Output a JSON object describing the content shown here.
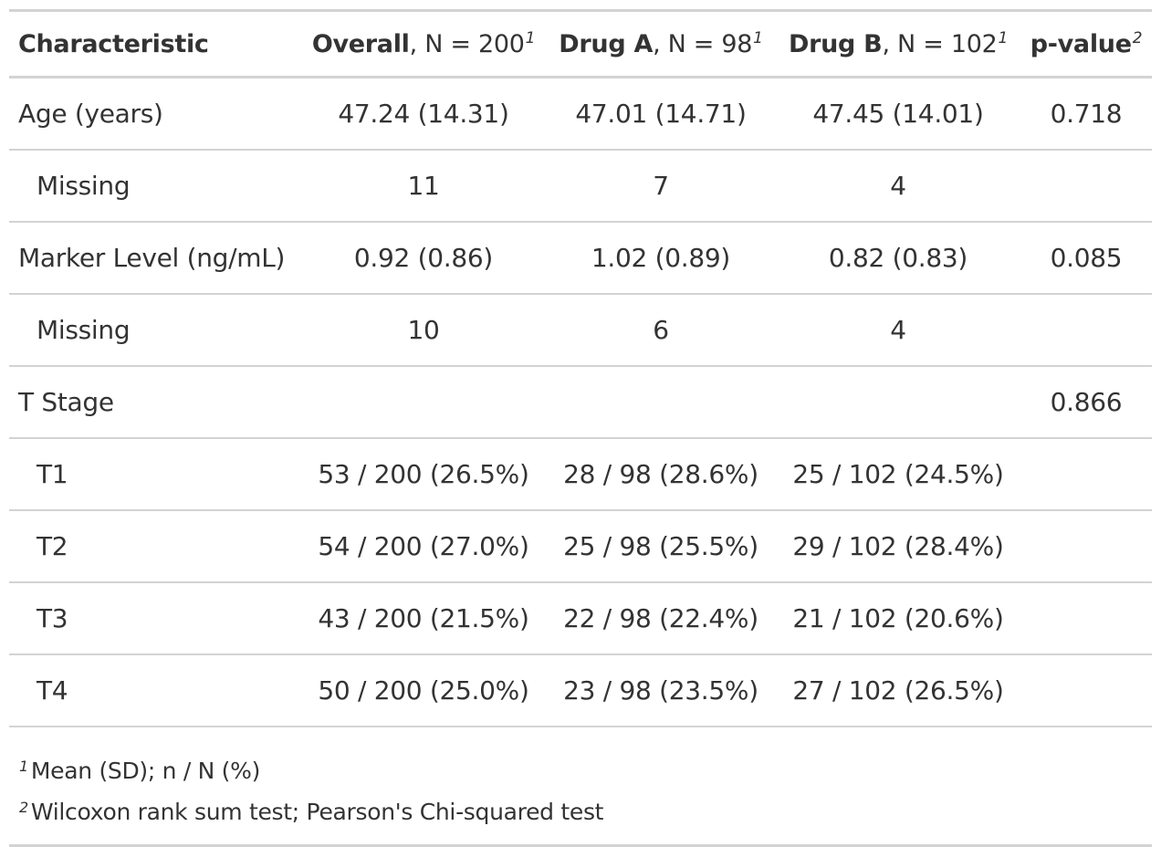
{
  "table": {
    "headers": {
      "characteristic": "Characteristic",
      "overall": {
        "bold": "Overall",
        "rest": ", N = 200",
        "note": "1"
      },
      "drug_a": {
        "bold": "Drug A",
        "rest": ", N = 98",
        "note": "1"
      },
      "drug_b": {
        "bold": "Drug B",
        "rest": ", N = 102",
        "note": "1"
      },
      "p_value": {
        "bold": "p-value",
        "note": "2"
      }
    },
    "rows": [
      {
        "label": "Age (years)",
        "overall": "47.24 (14.31)",
        "drug_a": "47.01 (14.71)",
        "drug_b": "47.45 (14.01)",
        "p_value": "0.718"
      },
      {
        "label": "Missing",
        "overall": "11",
        "drug_a": "7",
        "drug_b": "4",
        "p_value": ""
      },
      {
        "label": "Marker Level (ng/mL)",
        "overall": "0.92 (0.86)",
        "drug_a": "1.02 (0.89)",
        "drug_b": "0.82 (0.83)",
        "p_value": "0.085"
      },
      {
        "label": "Missing",
        "overall": "10",
        "drug_a": "6",
        "drug_b": "4",
        "p_value": ""
      },
      {
        "label": "T Stage",
        "overall": "",
        "drug_a": "",
        "drug_b": "",
        "p_value": "0.866"
      },
      {
        "label": "T1",
        "overall": "53 / 200 (26.5%)",
        "drug_a": "28 / 98 (28.6%)",
        "drug_b": "25 / 102 (24.5%)",
        "p_value": ""
      },
      {
        "label": "T2",
        "overall": "54 / 200 (27.0%)",
        "drug_a": "25 / 98 (25.5%)",
        "drug_b": "29 / 102 (28.4%)",
        "p_value": ""
      },
      {
        "label": "T3",
        "overall": "43 / 200 (21.5%)",
        "drug_a": "22 / 98 (22.4%)",
        "drug_b": "21 / 102 (20.6%)",
        "p_value": ""
      },
      {
        "label": "T4",
        "overall": "50 / 200 (25.0%)",
        "drug_a": "23 / 98 (23.5%)",
        "drug_b": "27 / 102 (26.5%)",
        "p_value": ""
      }
    ],
    "footnotes": [
      {
        "mark": "1",
        "text": "Mean (SD); n / N (%)"
      },
      {
        "mark": "2",
        "text": "Wilcoxon rank sum test; Pearson's Chi-squared test"
      }
    ],
    "colors": {
      "text": "#333333",
      "rule": "#d3d3d3"
    }
  }
}
